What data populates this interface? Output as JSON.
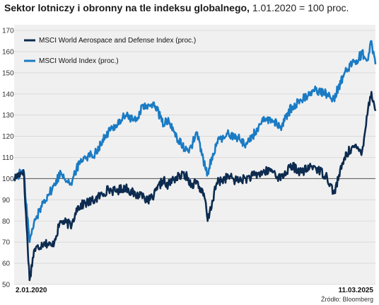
{
  "header": {
    "title_bold": "Sektor lotniczy i obronny na tle indeksu globalnego,",
    "title_rest": "1.01.2020 = 100 proc."
  },
  "source": "Źródło: Bloomberg",
  "chart_data": {
    "type": "line",
    "title": "Sektor lotniczy i obronny na tle indeksu globalnego, 1.01.2020 = 100 proc.",
    "x_start_label": "2.01.2020",
    "x_end_label": "11.03.2025",
    "x": [
      "2020-01-02",
      "2020-02-20",
      "2020-03-23",
      "2020-04-15",
      "2020-06-08",
      "2020-07-20",
      "2020-09-03",
      "2020-10-30",
      "2020-11-24",
      "2020-12-31",
      "2021-03-01",
      "2021-05-10",
      "2021-06-15",
      "2021-08-10",
      "2021-09-30",
      "2021-11-08",
      "2021-12-01",
      "2022-01-04",
      "2022-02-24",
      "2022-03-10",
      "2022-04-20",
      "2022-06-17",
      "2022-07-20",
      "2022-08-16",
      "2022-09-30",
      "2022-10-13",
      "2022-11-30",
      "2023-01-31",
      "2023-03-13",
      "2023-05-01",
      "2023-07-31",
      "2023-09-15",
      "2023-10-27",
      "2023-12-29",
      "2024-02-15",
      "2024-04-19",
      "2024-06-30",
      "2024-08-05",
      "2024-09-30",
      "2024-11-08",
      "2024-12-31",
      "2025-01-31",
      "2025-02-18",
      "2025-03-11"
    ],
    "ylim": [
      50,
      170
    ],
    "yticks": [
      50,
      60,
      70,
      80,
      90,
      100,
      110,
      120,
      130,
      140,
      150,
      160,
      170
    ],
    "reference_line": 100,
    "grid": true,
    "legend_position": "top-left",
    "series": [
      {
        "name": "MSCI World Aerospace and Defense Index (proc.)",
        "color": "#0d2b4f",
        "values": [
          100,
          104,
          52,
          66,
          70,
          68,
          80,
          78,
          86,
          88,
          90,
          95,
          94,
          96,
          92,
          93,
          89,
          92,
          100,
          96,
          100,
          102,
          97,
          99,
          90,
          80,
          98,
          101,
          99,
          100,
          103,
          104,
          100,
          106,
          103,
          106,
          101,
          93,
          110,
          115,
          113,
          133,
          141,
          132
        ]
      },
      {
        "name": "MSCI World Index (proc.)",
        "color": "#1a7bc4",
        "values": [
          100,
          104,
          70,
          79,
          90,
          95,
          103,
          97,
          105,
          110,
          112,
          122,
          125,
          130,
          127,
          135,
          133,
          136,
          125,
          128,
          122,
          113,
          115,
          122,
          105,
          103,
          117,
          121,
          120,
          116,
          127,
          128,
          124,
          134,
          137,
          142,
          140,
          138,
          150,
          154,
          159,
          156,
          165,
          154
        ]
      }
    ]
  }
}
